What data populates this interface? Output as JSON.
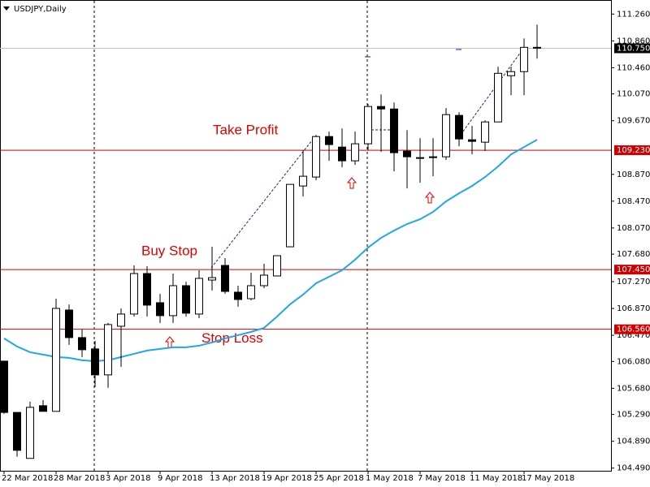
{
  "chart_data": {
    "type": "candlestick",
    "title": "USDJPY,Daily",
    "categories": [
      "22 Mar 2018",
      null,
      null,
      null,
      "28 Mar 2018",
      null,
      null,
      null,
      "3 Apr 2018",
      null,
      null,
      null,
      "9 Apr 2018",
      null,
      null,
      null,
      "13 Apr 2018",
      null,
      null,
      null,
      "19 Apr 2018",
      null,
      null,
      null,
      "25 Apr 2018",
      null,
      null,
      null,
      "1 May 2018",
      null,
      null,
      null,
      "7 May 2018",
      null,
      null,
      null,
      "11 May 2018",
      null,
      null,
      null,
      "17 May 2018",
      null
    ],
    "open": [
      106.085,
      105.32,
      104.635,
      105.42,
      105.336,
      106.847,
      106.436,
      106.267,
      105.88,
      106.605,
      106.787,
      107.391,
      106.956,
      106.763,
      107.21,
      106.787,
      107.294,
      107.512,
      107.113,
      107.016,
      107.21,
      107.355,
      107.79,
      108.697,
      108.83,
      109.434,
      109.277,
      109.072,
      109.326,
      109.882,
      109.845,
      109.217,
      109.12,
      109.12,
      109.132,
      109.749,
      109.386,
      109.35,
      109.652,
      110.341,
      110.402,
      110.764
    ],
    "high": [
      106.09,
      105.32,
      105.48,
      105.505,
      107.016,
      106.93,
      106.557,
      106.388,
      106.654,
      106.871,
      107.512,
      107.5,
      107.089,
      107.391,
      107.27,
      107.44,
      107.79,
      107.621,
      107.21,
      107.403,
      107.536,
      107.657,
      108.721,
      109.229,
      109.459,
      109.507,
      109.555,
      109.507,
      109.918,
      110.063,
      109.942,
      109.531,
      109.41,
      109.41,
      109.858,
      109.797,
      109.592,
      109.676,
      110.474,
      110.474,
      110.897,
      111.103
    ],
    "low": [
      105.3,
      104.66,
      104.635,
      105.336,
      105.336,
      106.327,
      106.146,
      105.699,
      105.687,
      106.0,
      106.75,
      106.75,
      106.654,
      106.654,
      106.75,
      106.726,
      107.137,
      107.089,
      106.896,
      106.992,
      107.174,
      107.355,
      107.79,
      108.54,
      108.782,
      109.072,
      108.975,
      109.011,
      109.229,
      109.205,
      108.915,
      108.661,
      108.745,
      108.842,
      109.084,
      109.289,
      109.168,
      109.217,
      109.652,
      110.051,
      110.051,
      110.595
    ],
    "close": [
      105.32,
      104.755,
      105.396,
      105.336,
      106.871,
      106.436,
      106.255,
      105.88,
      106.63,
      106.787,
      107.391,
      106.92,
      106.763,
      107.21,
      106.8,
      107.319,
      107.33,
      107.125,
      107.004,
      107.21,
      107.367,
      107.657,
      108.721,
      108.842,
      109.434,
      109.314,
      109.072,
      109.326,
      109.882,
      109.845,
      109.193,
      109.132,
      109.108,
      109.132,
      109.761,
      109.398,
      109.362,
      109.652,
      110.377,
      110.402,
      110.764,
      110.752
    ],
    "up_color": "#ffffff",
    "down_color": "#000000",
    "moving_average": {
      "color": "#1ea8e6",
      "values": [
        106.424,
        106.303,
        106.218,
        106.182,
        106.146,
        106.134,
        106.098,
        106.085,
        106.098,
        106.146,
        106.194,
        106.243,
        106.267,
        106.291,
        106.291,
        106.315,
        106.364,
        106.424,
        106.472,
        106.521,
        106.581,
        106.75,
        106.932,
        107.077,
        107.246,
        107.343,
        107.44,
        107.597,
        107.778,
        107.923,
        108.032,
        108.129,
        108.201,
        108.31,
        108.467,
        108.588,
        108.697,
        108.83,
        108.987,
        109.168,
        109.277,
        109.386
      ]
    },
    "levels": [
      {
        "value": 109.23,
        "label": "109.230",
        "annotation": "Take Profit",
        "color": "#d00000"
      },
      {
        "value": 107.45,
        "label": "107.450",
        "annotation": "Buy Stop",
        "color": "#d00000"
      },
      {
        "value": 106.56,
        "label": "106.560",
        "annotation": "Stop Loss",
        "color": "#d00000"
      }
    ],
    "price_line": {
      "value": 110.75,
      "label": "110.750",
      "color": "#c0c0c0"
    },
    "ylim": [
      104.45,
      111.47
    ],
    "yticks": [
      {
        "value": 111.26,
        "label": "111.260"
      },
      {
        "value": 110.86,
        "label": "110.860"
      },
      {
        "value": 110.46,
        "label": "110.460"
      },
      {
        "value": 110.07,
        "label": "110.070"
      },
      {
        "value": 109.67,
        "label": "109.670"
      },
      {
        "value": 108.87,
        "label": "108.870"
      },
      {
        "value": 108.47,
        "label": "108.470"
      },
      {
        "value": 108.07,
        "label": "108.070"
      },
      {
        "value": 107.68,
        "label": "107.680"
      },
      {
        "value": 107.27,
        "label": "107.270"
      },
      {
        "value": 106.87,
        "label": "106.870"
      },
      {
        "value": 106.47,
        "label": "106.470"
      },
      {
        "value": 106.08,
        "label": "106.080"
      },
      {
        "value": 105.68,
        "label": "105.680"
      },
      {
        "value": 105.29,
        "label": "105.290"
      },
      {
        "value": 104.89,
        "label": "104.890"
      },
      {
        "value": 104.49,
        "label": "104.490"
      }
    ]
  }
}
